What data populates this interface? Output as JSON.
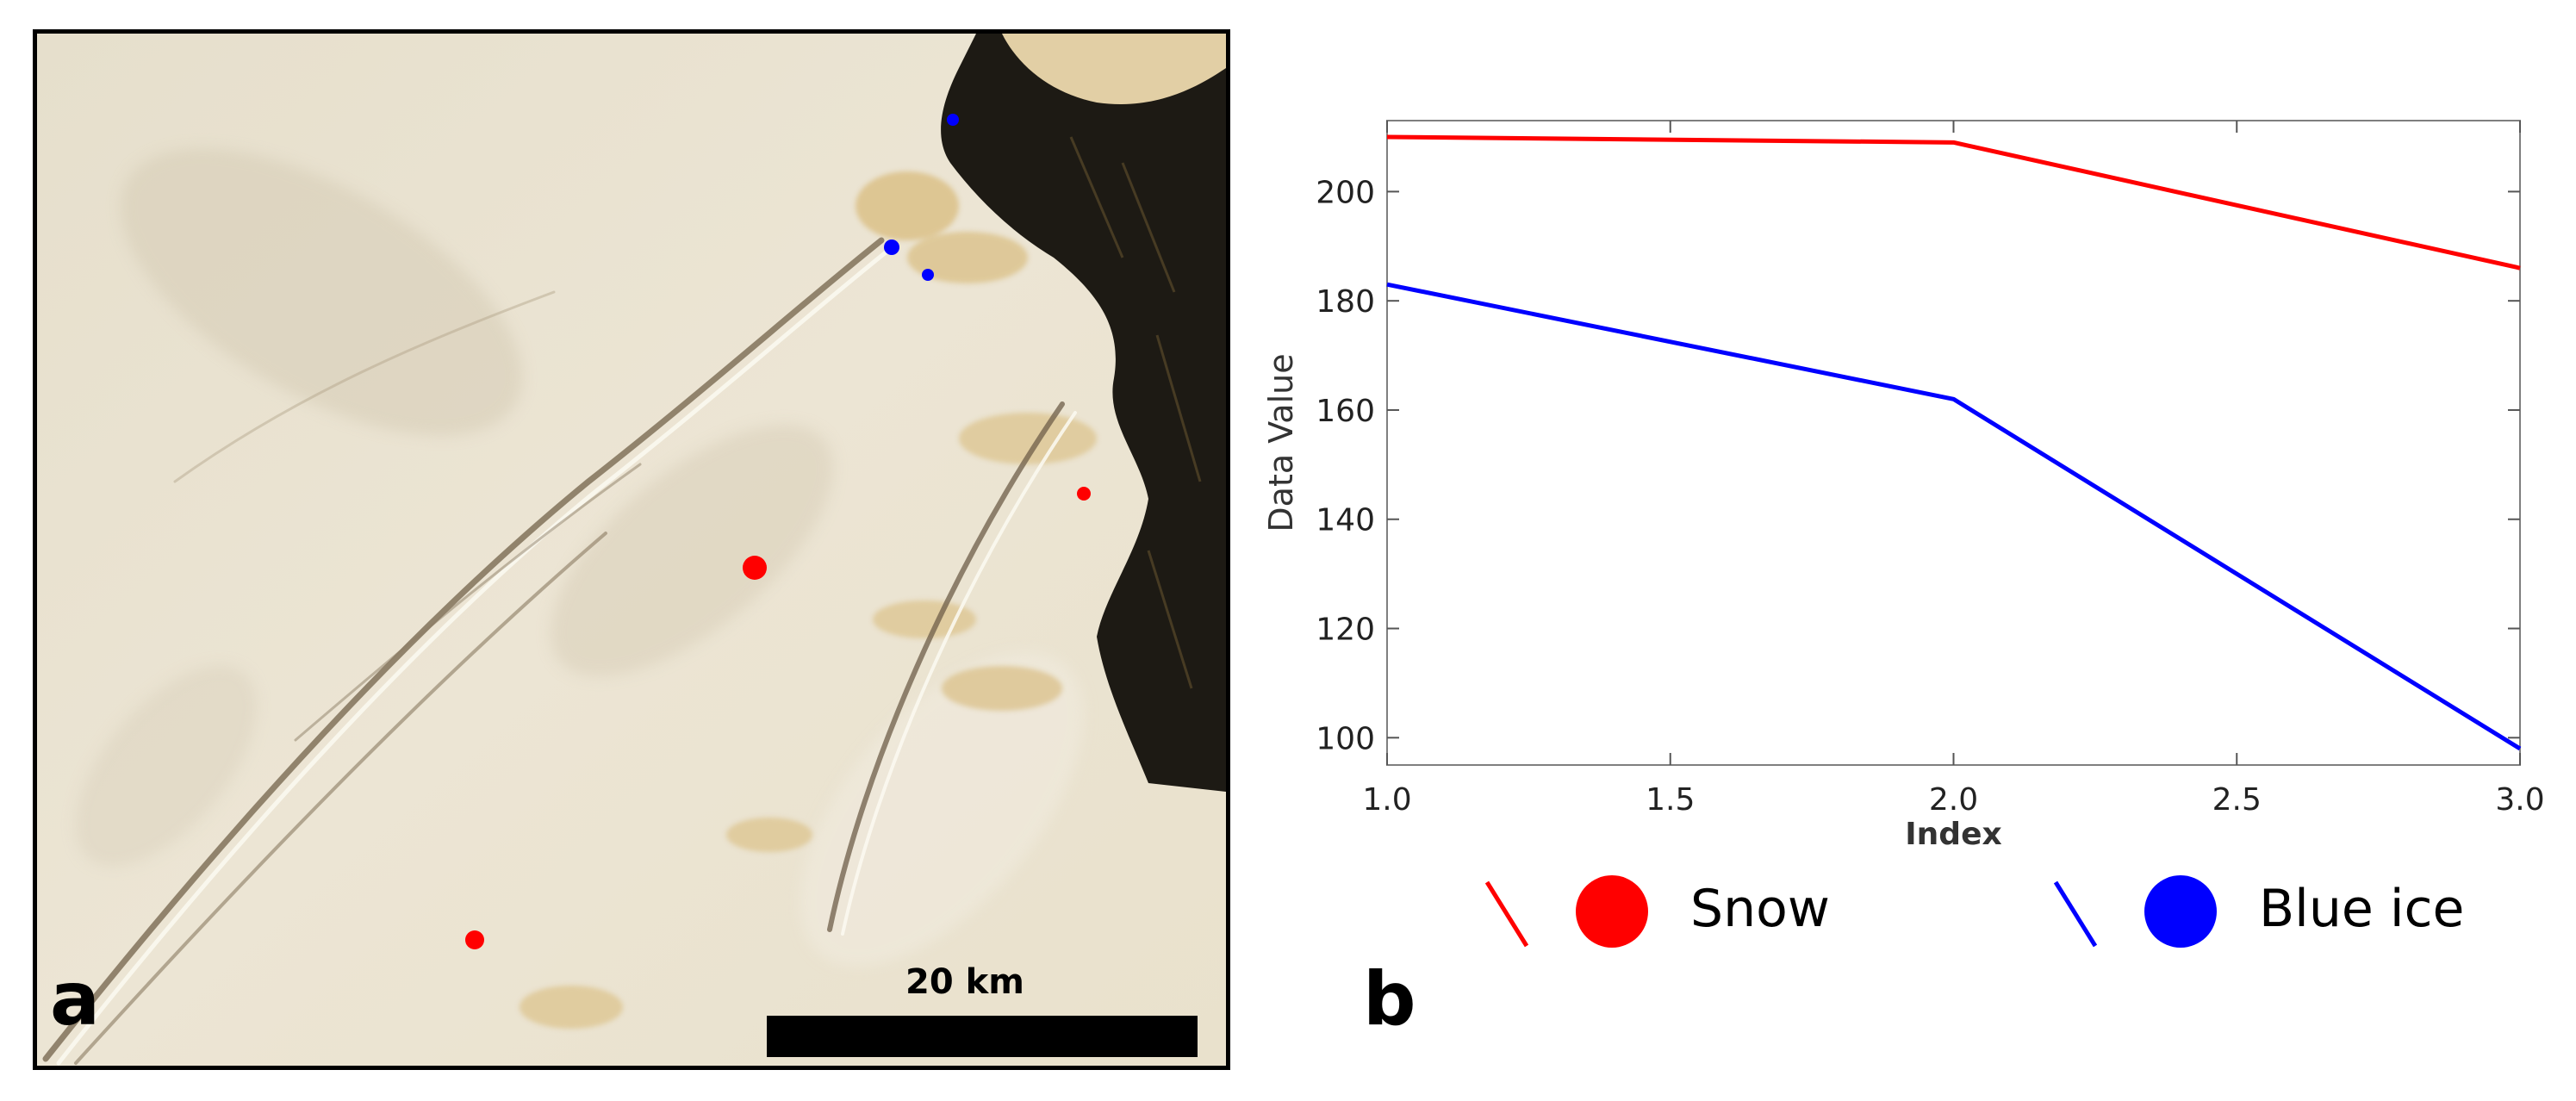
{
  "panels": {
    "a_label": "a",
    "b_label": "b"
  },
  "map": {
    "scale_bar_label": "20 km",
    "sample_points": [
      {
        "class": "snow",
        "size": "large"
      },
      {
        "class": "snow",
        "size": "small"
      },
      {
        "class": "snow",
        "size": "small"
      },
      {
        "class": "blue_ice",
        "size": "small"
      },
      {
        "class": "blue_ice",
        "size": "small"
      },
      {
        "class": "blue_ice",
        "size": "small"
      }
    ]
  },
  "legend": {
    "items": [
      {
        "label": "Snow",
        "color": "#ff0000"
      },
      {
        "label": "Blue ice",
        "color": "#0000ff"
      }
    ]
  },
  "chart_data": {
    "type": "line",
    "title": "",
    "xlabel": "Index",
    "ylabel": "Data Value",
    "xlim": [
      1.0,
      3.0
    ],
    "ylim": [
      95,
      213
    ],
    "xticks": [
      "1.0",
      "1.5",
      "2.0",
      "2.5",
      "3.0"
    ],
    "yticks": [
      "100",
      "120",
      "140",
      "160",
      "180",
      "200"
    ],
    "x": [
      1.0,
      2.0,
      3.0
    ],
    "series": [
      {
        "name": "Snow",
        "color": "#ff0000",
        "values": [
          210,
          209,
          186
        ]
      },
      {
        "name": "Blue ice",
        "color": "#0000ff",
        "values": [
          183,
          162,
          98
        ]
      }
    ],
    "grid": false,
    "legend_position": "bottom"
  }
}
